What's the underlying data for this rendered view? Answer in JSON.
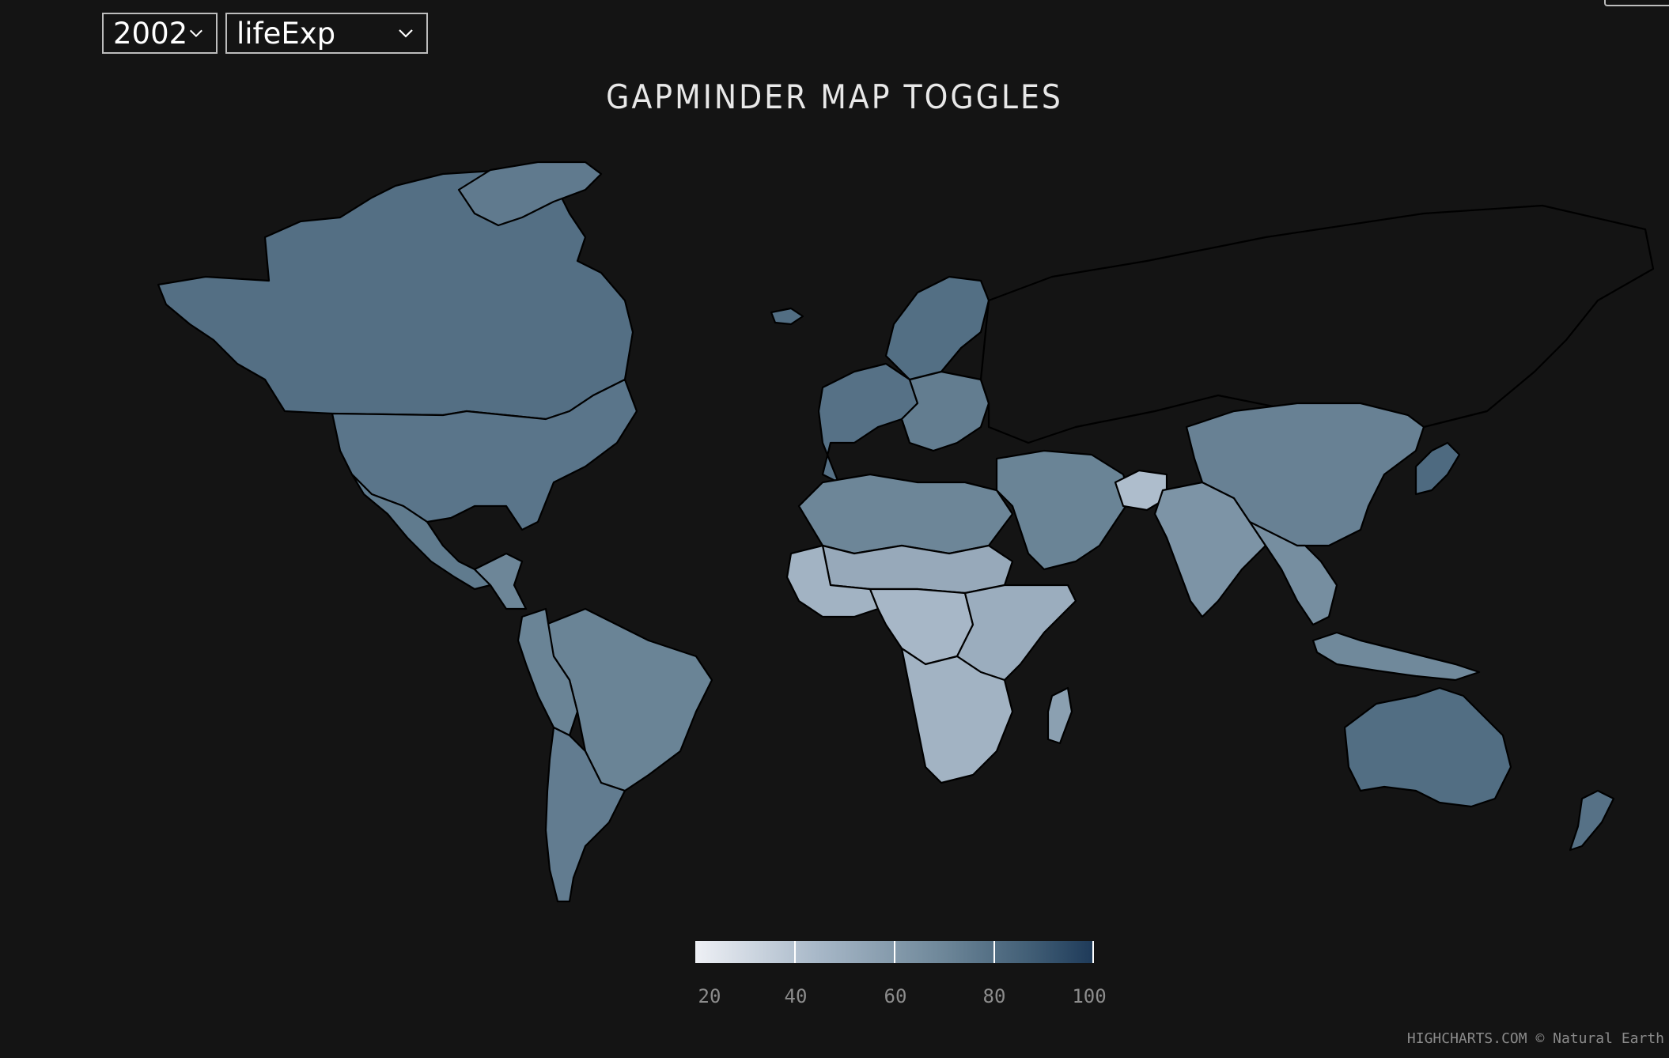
{
  "controls": {
    "year": "2002",
    "variable": "lifeExp"
  },
  "title": "GAPMINDER MAP TOGGLES",
  "legend": {
    "labels": [
      "20",
      "40",
      "60",
      "80",
      "100"
    ],
    "min": 20,
    "max": 100
  },
  "credits": "HIGHCHARTS.COM © Natural Earth",
  "colors": {
    "background": "#141414",
    "scale_low": "#eef0f5",
    "scale_high": "#1e3a59",
    "no_data": "#141414"
  },
  "map_data": {
    "metric": "lifeExp",
    "year": "2002",
    "regions": [
      {
        "name": "Canada",
        "value": 79.8
      },
      {
        "name": "United States",
        "value": 77.3
      },
      {
        "name": "Greenland",
        "value": 75
      },
      {
        "name": "Mexico",
        "value": 74.9
      },
      {
        "name": "Central America",
        "value": 70
      },
      {
        "name": "Brazil",
        "value": 71
      },
      {
        "name": "Andes",
        "value": 71
      },
      {
        "name": "Argentina",
        "value": 74.3
      },
      {
        "name": "Western Europe",
        "value": 79
      },
      {
        "name": "Eastern Europe",
        "value": 74
      },
      {
        "name": "Scandinavia",
        "value": 80
      },
      {
        "name": "Iceland",
        "value": 80.5
      },
      {
        "name": "Russia",
        "value": null
      },
      {
        "name": "North Africa",
        "value": 70
      },
      {
        "name": "Sahel",
        "value": 52
      },
      {
        "name": "West Africa",
        "value": 47
      },
      {
        "name": "Central Africa",
        "value": 45
      },
      {
        "name": "East Africa",
        "value": 50
      },
      {
        "name": "Southern Africa",
        "value": 47
      },
      {
        "name": "Madagascar",
        "value": 57
      },
      {
        "name": "Middle East",
        "value": 71
      },
      {
        "name": "Afghanistan",
        "value": 42.1
      },
      {
        "name": "India",
        "value": 62.9
      },
      {
        "name": "China",
        "value": 72
      },
      {
        "name": "Japan",
        "value": 82
      },
      {
        "name": "Southeast Asia",
        "value": 66
      },
      {
        "name": "Indonesia",
        "value": 68.6
      },
      {
        "name": "Australia",
        "value": 80.4
      },
      {
        "name": "New Zealand",
        "value": 79.1
      }
    ]
  }
}
